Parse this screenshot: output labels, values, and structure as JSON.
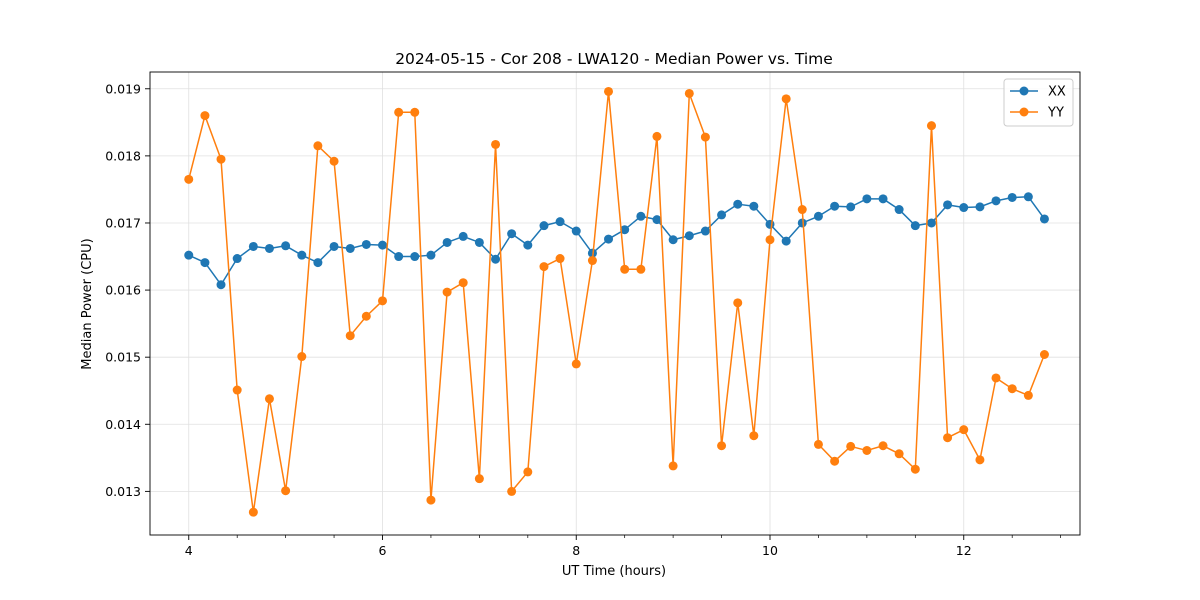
{
  "chart_data": {
    "type": "line",
    "title": "2024-05-15 - Cor 208 - LWA120 - Median Power vs. Time",
    "xlabel": "UT Time (hours)",
    "ylabel": "Median Power (CPU)",
    "xlim": [
      3.6,
      13.2
    ],
    "ylim": [
      0.01235,
      0.01925
    ],
    "grid": true,
    "legend": "top-right",
    "x_ticks": [
      4,
      6,
      8,
      10,
      12
    ],
    "x_tick_labels": [
      "4",
      "6",
      "8",
      "10",
      "12"
    ],
    "y_ticks": [
      0.013,
      0.014,
      0.015,
      0.016,
      0.017,
      0.018,
      0.019
    ],
    "y_tick_labels": [
      "0.013",
      "0.014",
      "0.015",
      "0.016",
      "0.017",
      "0.018",
      "0.019"
    ],
    "x": [
      4.0,
      4.167,
      4.333,
      4.5,
      4.667,
      4.833,
      5.0,
      5.167,
      5.333,
      5.5,
      5.667,
      5.833,
      6.0,
      6.167,
      6.333,
      6.5,
      6.667,
      6.833,
      7.0,
      7.167,
      7.333,
      7.5,
      7.667,
      7.833,
      8.0,
      8.167,
      8.333,
      8.5,
      8.667,
      8.833,
      9.0,
      9.167,
      9.333,
      9.5,
      9.667,
      9.833,
      10.0,
      10.167,
      10.333,
      10.5,
      10.667,
      10.833,
      11.0,
      11.167,
      11.333,
      11.5,
      11.667,
      11.833,
      12.0,
      12.167,
      12.333,
      12.5,
      12.667,
      12.833
    ],
    "series": [
      {
        "name": "XX",
        "color": "#1f77b4",
        "values": [
          0.01652,
          0.01641,
          0.01608,
          0.01647,
          0.01665,
          0.01662,
          0.01666,
          0.01652,
          0.01641,
          0.01665,
          0.01662,
          0.01668,
          0.01667,
          0.0165,
          0.0165,
          0.01652,
          0.01671,
          0.0168,
          0.01671,
          0.01646,
          0.01684,
          0.01667,
          0.01696,
          0.01702,
          0.01688,
          0.01655,
          0.01676,
          0.0169,
          0.0171,
          0.01705,
          0.01675,
          0.01681,
          0.01688,
          0.01712,
          0.01728,
          0.01725,
          0.01698,
          0.01673,
          0.017,
          0.0171,
          0.01725,
          0.01724,
          0.01736,
          0.01736,
          0.0172,
          0.01696,
          0.017,
          0.01727,
          0.01723,
          0.01724,
          0.01733,
          0.01738,
          0.01739,
          0.01706
        ]
      },
      {
        "name": "YY",
        "color": "#ff7f0e",
        "values": [
          0.01765,
          0.0186,
          0.01795,
          0.01451,
          0.01269,
          0.01438,
          0.01301,
          0.01501,
          0.01815,
          0.01792,
          0.01532,
          0.01561,
          0.01584,
          0.01865,
          0.01865,
          0.01287,
          0.01597,
          0.01611,
          0.01319,
          0.01817,
          0.013,
          0.01329,
          0.01635,
          0.01647,
          0.0149,
          0.01644,
          0.01896,
          0.01631,
          0.01631,
          0.01829,
          0.01338,
          0.01893,
          0.01828,
          0.01368,
          0.01581,
          0.01383,
          0.01675,
          0.01885,
          0.0172,
          0.0137,
          0.01345,
          0.01367,
          0.01361,
          0.01368,
          0.01356,
          0.01333,
          0.01845,
          0.0138,
          0.01392,
          0.01347,
          0.01469,
          0.01453,
          0.01443,
          0.01504
        ]
      }
    ]
  }
}
